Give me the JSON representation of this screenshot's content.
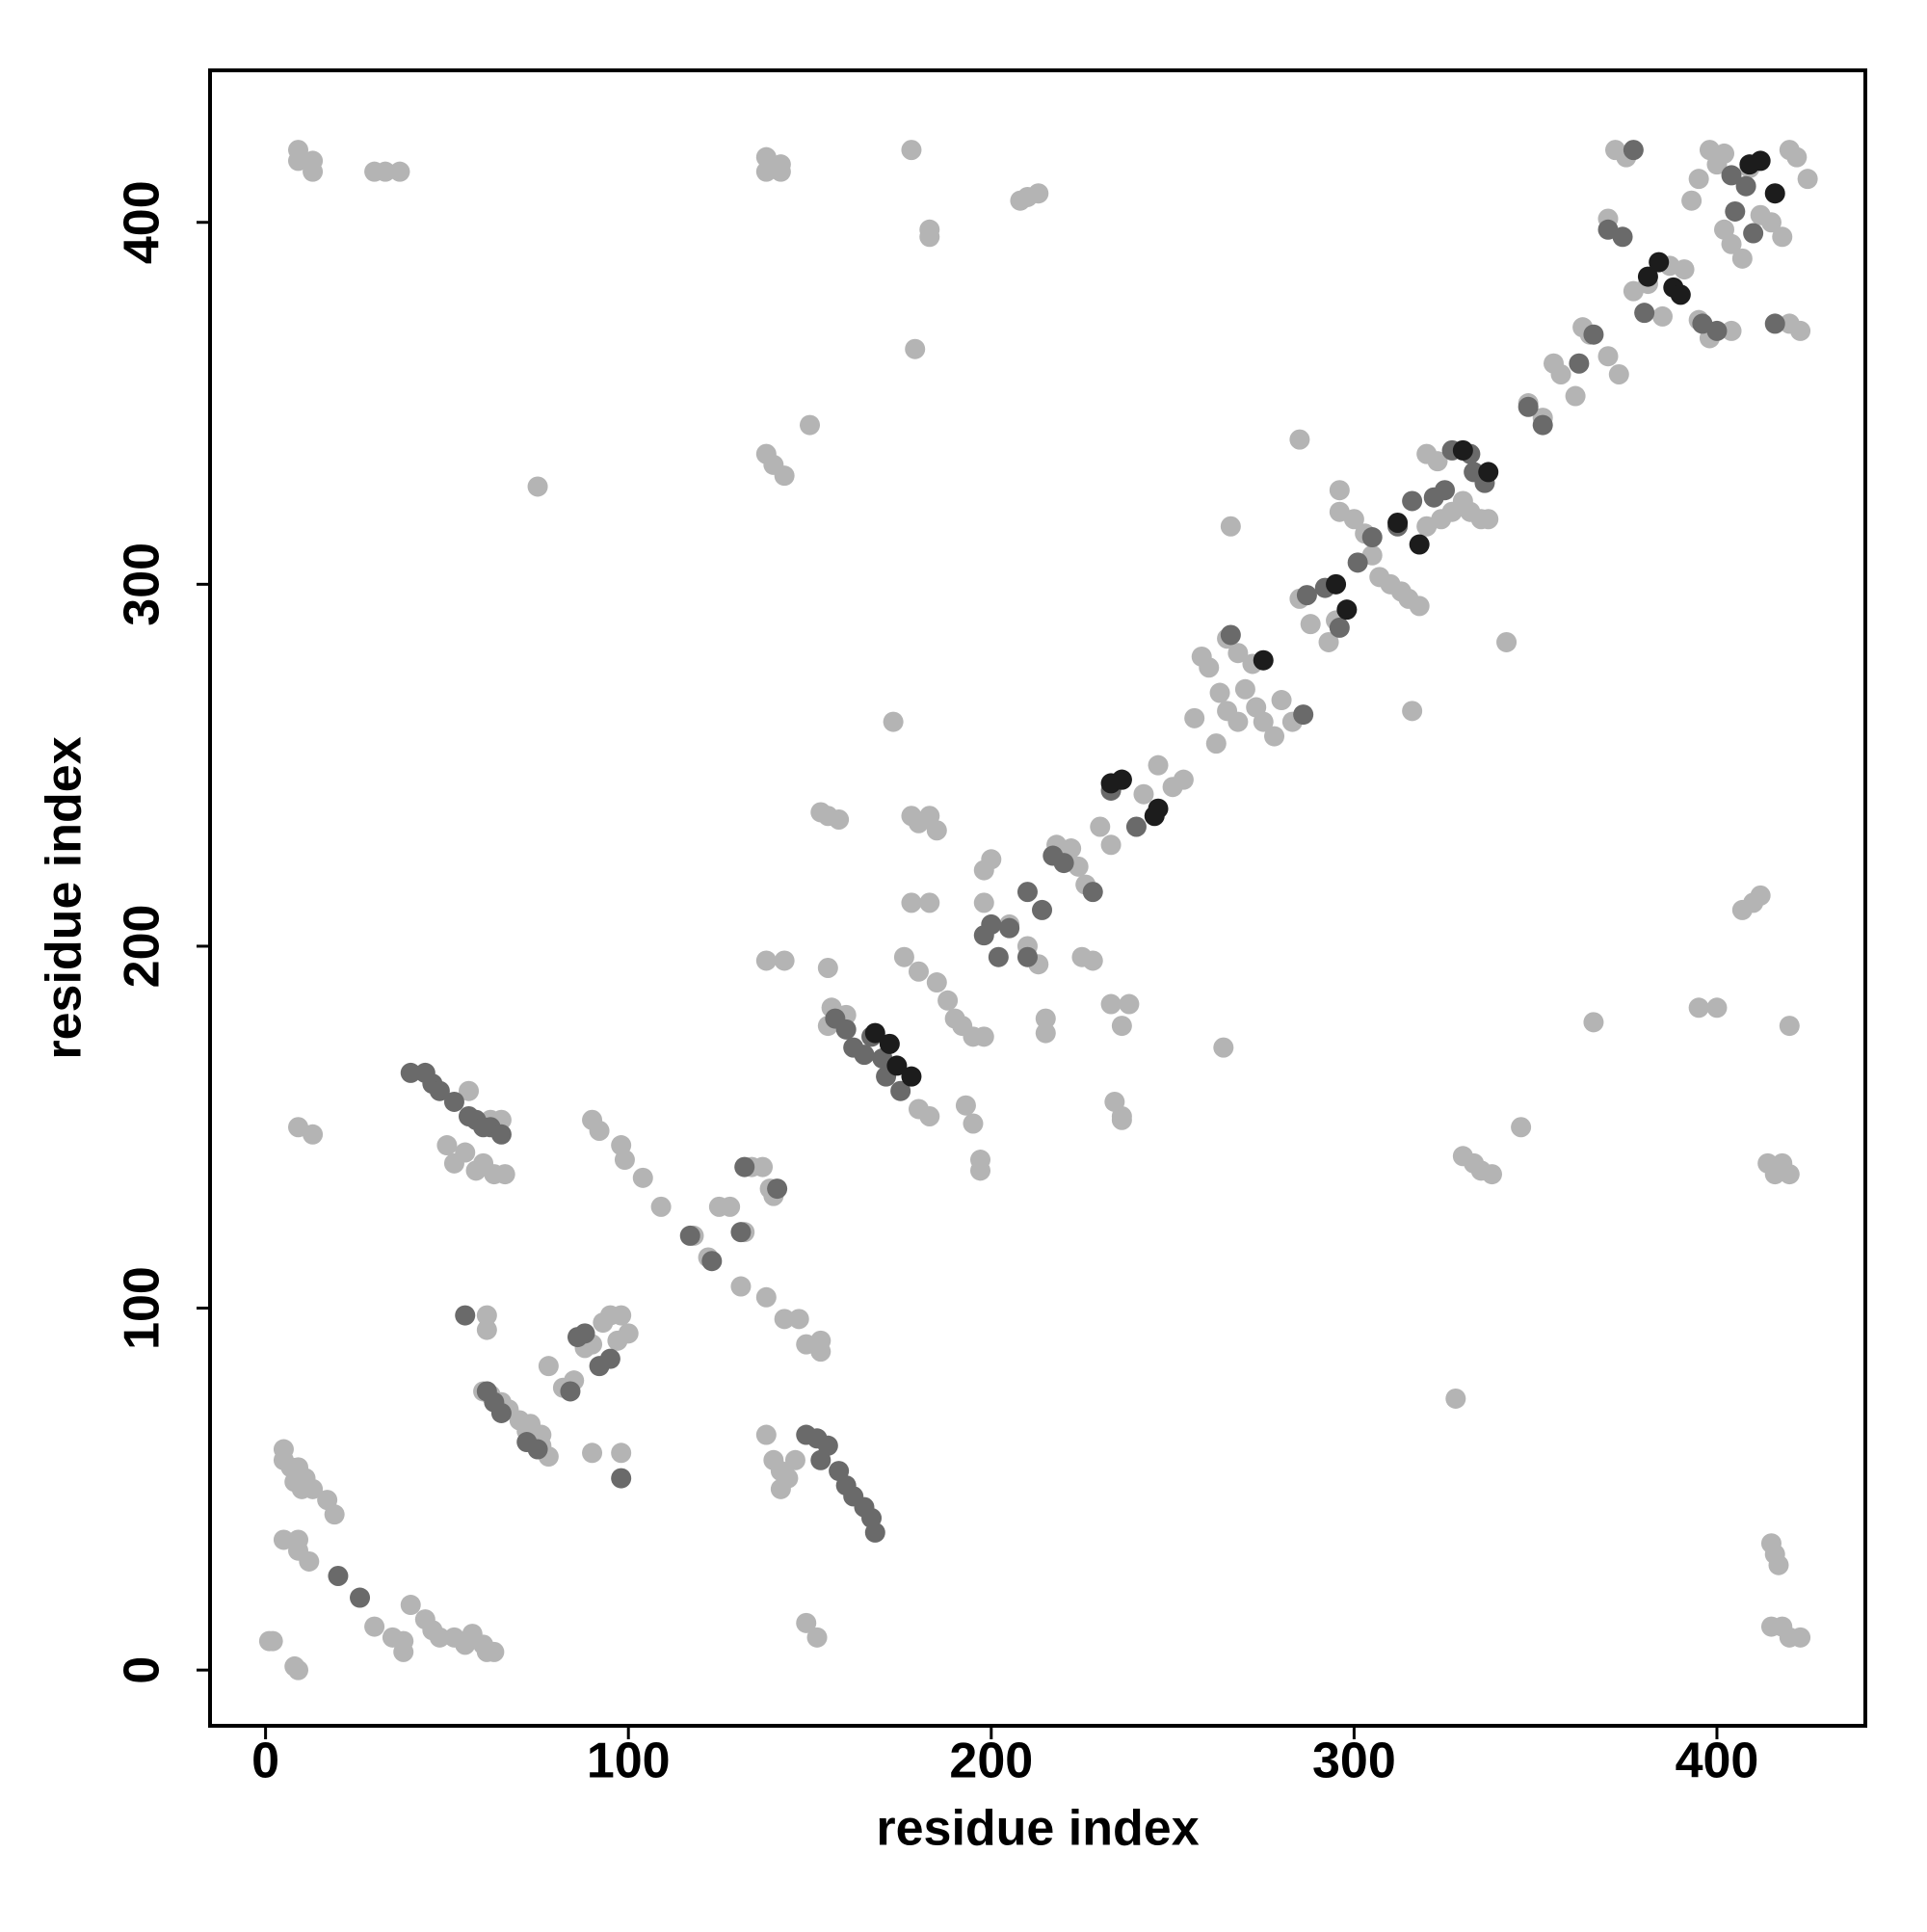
{
  "chart_data": {
    "type": "scatter",
    "xlabel": "residue index",
    "ylabel": "residue index",
    "xlim": [
      -15.3,
      440.9
    ],
    "ylim": [
      -15.4,
      442
    ],
    "xticks": [
      0,
      100,
      200,
      300,
      400
    ],
    "yticks": [
      0,
      100,
      200,
      300,
      400
    ],
    "series": [
      {
        "color": "#b4b4b4",
        "x": [
          9,
          9,
          13,
          13,
          30,
          33,
          37,
          138,
          138,
          142,
          142,
          178,
          183,
          183,
          179,
          208,
          210,
          213,
          75,
          150,
          138,
          140,
          143,
          285,
          266,
          173,
          342,
          5,
          5,
          7,
          9,
          11,
          8,
          10,
          13,
          17,
          19,
          5,
          9,
          9,
          12,
          40,
          44,
          46,
          48,
          52,
          55,
          57,
          60,
          61,
          63,
          30,
          35,
          38,
          38,
          1,
          2,
          8,
          9,
          149,
          152,
          138,
          140,
          142,
          144,
          146,
          142,
          50,
          52,
          55,
          58,
          60,
          63,
          66,
          56,
          62,
          65,
          9,
          13,
          61,
          61,
          90,
          98,
          60,
          62,
          65,
          67,
          70,
          72,
          74,
          76,
          78,
          73,
          76,
          78,
          82,
          85,
          88,
          90,
          93,
          95,
          98,
          100,
          97,
          90,
          92,
          98,
          99,
          104,
          109,
          118,
          122,
          125,
          128,
          132,
          131,
          134,
          137,
          139,
          140,
          138,
          143,
          147,
          149,
          153,
          153,
          153,
          155,
          158,
          178,
          180,
          183,
          185,
          178,
          183,
          176,
          180,
          185,
          188,
          190,
          192,
          195,
          198,
          198,
          200,
          198,
          205,
          210,
          213,
          215,
          215,
          180,
          183,
          193,
          195,
          197,
          197,
          138,
          143,
          155,
          156,
          155,
          160,
          218,
          222,
          224,
          226,
          230,
          233,
          236,
          238,
          233,
          225,
          228,
          234,
          236,
          236,
          242,
          246,
          250,
          253,
          264,
          256,
          258,
          260,
          263,
          265,
          268,
          270,
          273,
          275,
          278,
          280,
          283,
          262,
          265,
          268,
          272,
          285,
          288,
          293,
          295,
          296,
          300,
          303,
          305,
          307,
          310,
          313,
          315,
          318,
          320,
          324,
          327,
          330,
          332,
          335,
          337,
          320,
          323,
          316,
          296,
          348,
          352,
          355,
          357,
          361,
          363,
          365,
          370,
          373,
          370,
          372,
          375,
          377,
          381,
          385,
          387,
          391,
          393,
          395,
          398,
          400,
          402,
          404,
          407,
          409,
          412,
          415,
          418,
          420,
          422,
          425,
          402,
          395,
          398,
          404,
          420,
          423,
          366,
          395,
          400,
          420,
          407,
          410,
          412,
          414,
          416,
          418,
          420,
          330,
          333,
          335,
          338,
          346,
          328,
          415,
          416,
          417,
          415,
          418,
          420,
          423
        ],
        "y": [
          420,
          417,
          417,
          414,
          414,
          414,
          414,
          418,
          414,
          416,
          414,
          420,
          398,
          396,
          365,
          406,
          407,
          408,
          327,
          344,
          336,
          333,
          330,
          340,
          316,
          262,
          284,
          61,
          58,
          56,
          56,
          53,
          52,
          50,
          50,
          47,
          43,
          36,
          36,
          33,
          30,
          18,
          14,
          11,
          9,
          9,
          7,
          10,
          7,
          5,
          5,
          12,
          9,
          8,
          5,
          8,
          8,
          1,
          0,
          13,
          9,
          65,
          58,
          55,
          53,
          58,
          50,
          145,
          140,
          143,
          138,
          140,
          137,
          137,
          160,
          152,
          152,
          150,
          148,
          98,
          94,
          60,
          60,
          77,
          76,
          74,
          72,
          69,
          66,
          64,
          62,
          59,
          68,
          65,
          84,
          78,
          80,
          89,
          90,
          96,
          98,
          98,
          93,
          91,
          152,
          149,
          145,
          141,
          136,
          128,
          120,
          114,
          128,
          128,
          121,
          106,
          139,
          139,
          133,
          131,
          103,
          97,
          97,
          90,
          91,
          88,
          237,
          236,
          235,
          236,
          234,
          236,
          232,
          212,
          212,
          197,
          193,
          190,
          185,
          180,
          178,
          175,
          175,
          221,
          224,
          212,
          206,
          200,
          195,
          180,
          176,
          155,
          153,
          156,
          151,
          141,
          138,
          196,
          196,
          194,
          183,
          178,
          181,
          228,
          227,
          222,
          217,
          233,
          228,
          178,
          184,
          184,
          197,
          196,
          157,
          153,
          152,
          242,
          250,
          244,
          246,
          172,
          263,
          280,
          277,
          270,
          265,
          262,
          271,
          266,
          262,
          258,
          268,
          262,
          256,
          285,
          281,
          278,
          296,
          289,
          284,
          290,
          320,
          318,
          314,
          308,
          302,
          300,
          298,
          296,
          294,
          316,
          318,
          320,
          323,
          320,
          318,
          318,
          336,
          334,
          265,
          326,
          350,
          346,
          361,
          358,
          352,
          371,
          369,
          363,
          358,
          401,
          420,
          418,
          381,
          383,
          374,
          388,
          387,
          406,
          412,
          420,
          416,
          398,
          394,
          390,
          415,
          402,
          400,
          396,
          420,
          418,
          412,
          419,
          373,
          368,
          370,
          372,
          370,
          179,
          183,
          183,
          178,
          210,
          212,
          214,
          140,
          137,
          140,
          137,
          142,
          140,
          138,
          137,
          150,
          75,
          35,
          32,
          29,
          12,
          12,
          9,
          9
        ]
      },
      {
        "color": "#6a6a6a",
        "x": [
          20,
          26,
          149,
          152,
          155,
          153,
          158,
          160,
          162,
          165,
          167,
          168,
          40,
          44,
          46,
          48,
          52,
          56,
          58,
          62,
          65,
          60,
          55,
          98,
          61,
          63,
          65,
          72,
          75,
          84,
          86,
          88,
          92,
          95,
          117,
          123,
          131,
          132,
          141,
          157,
          160,
          162,
          165,
          167,
          170,
          171,
          175,
          198,
          200,
          202,
          205,
          210,
          210,
          214,
          217,
          220,
          228,
          233,
          236,
          240,
          266,
          286,
          287,
          292,
          296,
          301,
          305,
          312,
          316,
          322,
          325,
          327,
          332,
          333,
          336,
          348,
          352,
          362,
          366,
          370,
          374,
          377,
          380,
          396,
          400,
          405,
          410,
          416,
          404,
          408
        ],
        "y": [
          26,
          20,
          65,
          64,
          62,
          58,
          55,
          51,
          48,
          45,
          42,
          38,
          165,
          165,
          162,
          160,
          157,
          153,
          152,
          150,
          148,
          150,
          98,
          53,
          77,
          74,
          71,
          63,
          61,
          77,
          92,
          93,
          84,
          86,
          120,
          113,
          121,
          139,
          133,
          180,
          177,
          172,
          170,
          175,
          169,
          164,
          160,
          203,
          206,
          197,
          205,
          197,
          215,
          210,
          225,
          223,
          215,
          243,
          246,
          233,
          286,
          264,
          297,
          299,
          288,
          306,
          313,
          316,
          323,
          324,
          326,
          337,
          336,
          331,
          328,
          349,
          344,
          361,
          369,
          398,
          396,
          420,
          375,
          372,
          370,
          403,
          397,
          372,
          413,
          410
        ]
      },
      {
        "color": "#1c1c1c",
        "x": [
          168,
          172,
          174,
          178,
          233,
          236,
          245,
          246,
          275,
          295,
          298,
          312,
          318,
          330,
          337,
          381,
          384,
          388,
          390,
          412,
          416,
          409
        ],
        "y": [
          176,
          173,
          167,
          164,
          245,
          246,
          236,
          238,
          279,
          300,
          293,
          317,
          311,
          337,
          331,
          385,
          389,
          382,
          380,
          417,
          408,
          416
        ]
      }
    ]
  }
}
